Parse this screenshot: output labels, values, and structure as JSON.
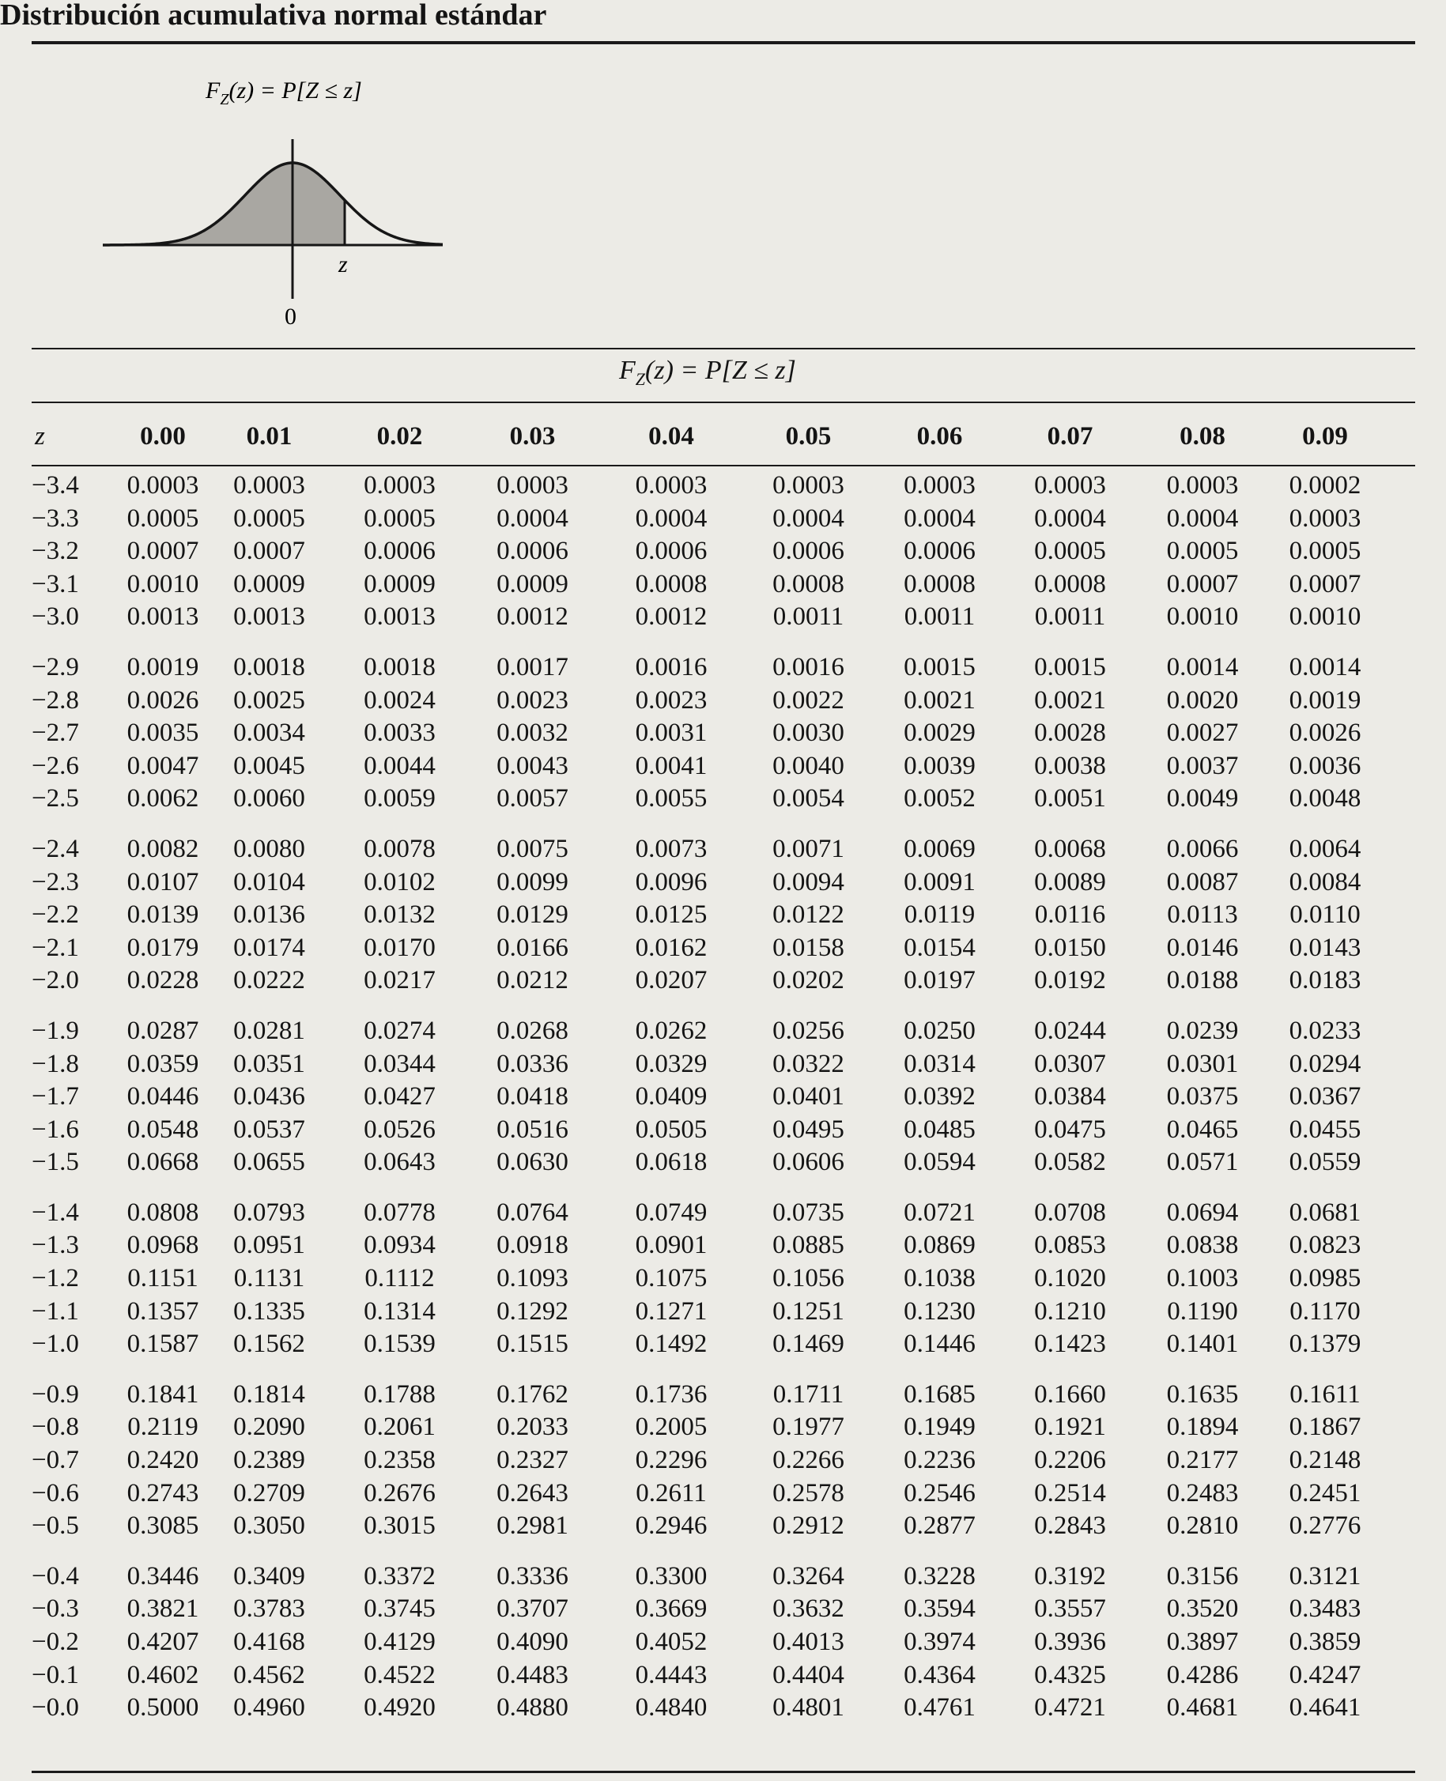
{
  "page": {
    "title": "Distribución acumulativa normal estándar",
    "figure": {
      "label_fz": "F",
      "label_fz_sub": "Z",
      "label_fz_rest": "(z) = P[Z ≤ z]",
      "label_z": "z",
      "label_zero": "0",
      "shaded_fraction_upper_z": 0.5
    },
    "table_title": {
      "prefix": "F",
      "sub": "Z",
      "rest": "(z) = P[Z ≤ z]"
    }
  },
  "table": {
    "header": [
      "z",
      "0.00",
      "0.01",
      "0.02",
      "0.03",
      "0.04",
      "0.05",
      "0.06",
      "0.07",
      "0.08",
      "0.09"
    ],
    "groups": [
      [
        [
          "−3.4",
          "0.0003",
          "0.0003",
          "0.0003",
          "0.0003",
          "0.0003",
          "0.0003",
          "0.0003",
          "0.0003",
          "0.0003",
          "0.0002"
        ],
        [
          "−3.3",
          "0.0005",
          "0.0005",
          "0.0005",
          "0.0004",
          "0.0004",
          "0.0004",
          "0.0004",
          "0.0004",
          "0.0004",
          "0.0003"
        ],
        [
          "−3.2",
          "0.0007",
          "0.0007",
          "0.0006",
          "0.0006",
          "0.0006",
          "0.0006",
          "0.0006",
          "0.0005",
          "0.0005",
          "0.0005"
        ],
        [
          "−3.1",
          "0.0010",
          "0.0009",
          "0.0009",
          "0.0009",
          "0.0008",
          "0.0008",
          "0.0008",
          "0.0008",
          "0.0007",
          "0.0007"
        ],
        [
          "−3.0",
          "0.0013",
          "0.0013",
          "0.0013",
          "0.0012",
          "0.0012",
          "0.0011",
          "0.0011",
          "0.0011",
          "0.0010",
          "0.0010"
        ]
      ],
      [
        [
          "−2.9",
          "0.0019",
          "0.0018",
          "0.0018",
          "0.0017",
          "0.0016",
          "0.0016",
          "0.0015",
          "0.0015",
          "0.0014",
          "0.0014"
        ],
        [
          "−2.8",
          "0.0026",
          "0.0025",
          "0.0024",
          "0.0023",
          "0.0023",
          "0.0022",
          "0.0021",
          "0.0021",
          "0.0020",
          "0.0019"
        ],
        [
          "−2.7",
          "0.0035",
          "0.0034",
          "0.0033",
          "0.0032",
          "0.0031",
          "0.0030",
          "0.0029",
          "0.0028",
          "0.0027",
          "0.0026"
        ],
        [
          "−2.6",
          "0.0047",
          "0.0045",
          "0.0044",
          "0.0043",
          "0.0041",
          "0.0040",
          "0.0039",
          "0.0038",
          "0.0037",
          "0.0036"
        ],
        [
          "−2.5",
          "0.0062",
          "0.0060",
          "0.0059",
          "0.0057",
          "0.0055",
          "0.0054",
          "0.0052",
          "0.0051",
          "0.0049",
          "0.0048"
        ]
      ],
      [
        [
          "−2.4",
          "0.0082",
          "0.0080",
          "0.0078",
          "0.0075",
          "0.0073",
          "0.0071",
          "0.0069",
          "0.0068",
          "0.0066",
          "0.0064"
        ],
        [
          "−2.3",
          "0.0107",
          "0.0104",
          "0.0102",
          "0.0099",
          "0.0096",
          "0.0094",
          "0.0091",
          "0.0089",
          "0.0087",
          "0.0084"
        ],
        [
          "−2.2",
          "0.0139",
          "0.0136",
          "0.0132",
          "0.0129",
          "0.0125",
          "0.0122",
          "0.0119",
          "0.0116",
          "0.0113",
          "0.0110"
        ],
        [
          "−2.1",
          "0.0179",
          "0.0174",
          "0.0170",
          "0.0166",
          "0.0162",
          "0.0158",
          "0.0154",
          "0.0150",
          "0.0146",
          "0.0143"
        ],
        [
          "−2.0",
          "0.0228",
          "0.0222",
          "0.0217",
          "0.0212",
          "0.0207",
          "0.0202",
          "0.0197",
          "0.0192",
          "0.0188",
          "0.0183"
        ]
      ],
      [
        [
          "−1.9",
          "0.0287",
          "0.0281",
          "0.0274",
          "0.0268",
          "0.0262",
          "0.0256",
          "0.0250",
          "0.0244",
          "0.0239",
          "0.0233"
        ],
        [
          "−1.8",
          "0.0359",
          "0.0351",
          "0.0344",
          "0.0336",
          "0.0329",
          "0.0322",
          "0.0314",
          "0.0307",
          "0.0301",
          "0.0294"
        ],
        [
          "−1.7",
          "0.0446",
          "0.0436",
          "0.0427",
          "0.0418",
          "0.0409",
          "0.0401",
          "0.0392",
          "0.0384",
          "0.0375",
          "0.0367"
        ],
        [
          "−1.6",
          "0.0548",
          "0.0537",
          "0.0526",
          "0.0516",
          "0.0505",
          "0.0495",
          "0.0485",
          "0.0475",
          "0.0465",
          "0.0455"
        ],
        [
          "−1.5",
          "0.0668",
          "0.0655",
          "0.0643",
          "0.0630",
          "0.0618",
          "0.0606",
          "0.0594",
          "0.0582",
          "0.0571",
          "0.0559"
        ]
      ],
      [
        [
          "−1.4",
          "0.0808",
          "0.0793",
          "0.0778",
          "0.0764",
          "0.0749",
          "0.0735",
          "0.0721",
          "0.0708",
          "0.0694",
          "0.0681"
        ],
        [
          "−1.3",
          "0.0968",
          "0.0951",
          "0.0934",
          "0.0918",
          "0.0901",
          "0.0885",
          "0.0869",
          "0.0853",
          "0.0838",
          "0.0823"
        ],
        [
          "−1.2",
          "0.1151",
          "0.1131",
          "0.1112",
          "0.1093",
          "0.1075",
          "0.1056",
          "0.1038",
          "0.1020",
          "0.1003",
          "0.0985"
        ],
        [
          "−1.1",
          "0.1357",
          "0.1335",
          "0.1314",
          "0.1292",
          "0.1271",
          "0.1251",
          "0.1230",
          "0.1210",
          "0.1190",
          "0.1170"
        ],
        [
          "−1.0",
          "0.1587",
          "0.1562",
          "0.1539",
          "0.1515",
          "0.1492",
          "0.1469",
          "0.1446",
          "0.1423",
          "0.1401",
          "0.1379"
        ]
      ],
      [
        [
          "−0.9",
          "0.1841",
          "0.1814",
          "0.1788",
          "0.1762",
          "0.1736",
          "0.1711",
          "0.1685",
          "0.1660",
          "0.1635",
          "0.1611"
        ],
        [
          "−0.8",
          "0.2119",
          "0.2090",
          "0.2061",
          "0.2033",
          "0.2005",
          "0.1977",
          "0.1949",
          "0.1921",
          "0.1894",
          "0.1867"
        ],
        [
          "−0.7",
          "0.2420",
          "0.2389",
          "0.2358",
          "0.2327",
          "0.2296",
          "0.2266",
          "0.2236",
          "0.2206",
          "0.2177",
          "0.2148"
        ],
        [
          "−0.6",
          "0.2743",
          "0.2709",
          "0.2676",
          "0.2643",
          "0.2611",
          "0.2578",
          "0.2546",
          "0.2514",
          "0.2483",
          "0.2451"
        ],
        [
          "−0.5",
          "0.3085",
          "0.3050",
          "0.3015",
          "0.2981",
          "0.2946",
          "0.2912",
          "0.2877",
          "0.2843",
          "0.2810",
          "0.2776"
        ]
      ],
      [
        [
          "−0.4",
          "0.3446",
          "0.3409",
          "0.3372",
          "0.3336",
          "0.3300",
          "0.3264",
          "0.3228",
          "0.3192",
          "0.3156",
          "0.3121"
        ],
        [
          "−0.3",
          "0.3821",
          "0.3783",
          "0.3745",
          "0.3707",
          "0.3669",
          "0.3632",
          "0.3594",
          "0.3557",
          "0.3520",
          "0.3483"
        ],
        [
          "−0.2",
          "0.4207",
          "0.4168",
          "0.4129",
          "0.4090",
          "0.4052",
          "0.4013",
          "0.3974",
          "0.3936",
          "0.3897",
          "0.3859"
        ],
        [
          "−0.1",
          "0.4602",
          "0.4562",
          "0.4522",
          "0.4483",
          "0.4443",
          "0.4404",
          "0.4364",
          "0.4325",
          "0.4286",
          "0.4247"
        ],
        [
          "−0.0",
          "0.5000",
          "0.4960",
          "0.4920",
          "0.4880",
          "0.4840",
          "0.4801",
          "0.4761",
          "0.4721",
          "0.4681",
          "0.4641"
        ]
      ]
    ]
  }
}
